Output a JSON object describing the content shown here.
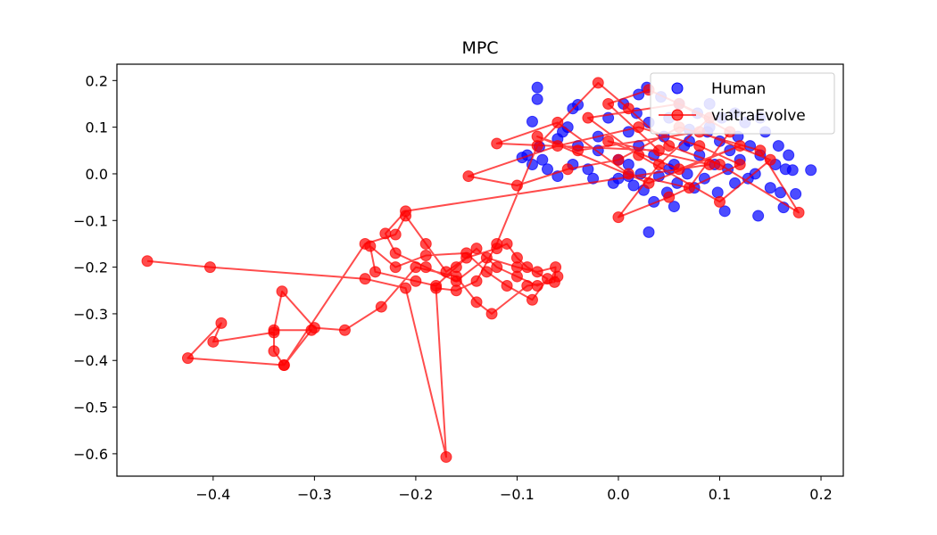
{
  "chart_data": {
    "type": "scatter",
    "title": "MPC",
    "xlabel": "",
    "ylabel": "",
    "xlim": [
      -0.495,
      0.222
    ],
    "ylim": [
      -0.648,
      0.235
    ],
    "x_ticks": [
      -0.4,
      -0.3,
      -0.2,
      -0.1,
      0.0,
      0.1,
      0.2
    ],
    "y_ticks": [
      0.2,
      0.1,
      0.0,
      -0.1,
      -0.2,
      -0.3,
      -0.4,
      -0.5,
      -0.6
    ],
    "x_tick_labels": [
      "−0.4",
      "−0.3",
      "−0.2",
      "−0.1",
      "0.0",
      "0.1",
      "0.2"
    ],
    "y_tick_labels": [
      "0.2",
      "0.1",
      "0.0",
      "−0.1",
      "−0.2",
      "−0.3",
      "−0.4",
      "−0.5",
      "−0.6"
    ],
    "grid": false,
    "legend_position": "top-right",
    "series": [
      {
        "name": "Human",
        "style": "scatter",
        "color": "#0000ff",
        "points": [
          [
            -0.08,
            0.185
          ],
          [
            -0.08,
            0.16
          ],
          [
            -0.045,
            0.14
          ],
          [
            -0.04,
            0.148
          ],
          [
            -0.085,
            0.112
          ],
          [
            -0.09,
            0.04
          ],
          [
            -0.095,
            0.035
          ],
          [
            -0.085,
            0.02
          ],
          [
            -0.078,
            0.058
          ],
          [
            -0.075,
            0.03
          ],
          [
            -0.06,
            0.075
          ],
          [
            -0.055,
            0.09
          ],
          [
            -0.05,
            0.1
          ],
          [
            -0.045,
            0.02
          ],
          [
            -0.04,
            0.06
          ],
          [
            -0.03,
            0.01
          ],
          [
            -0.025,
            -0.01
          ],
          [
            -0.02,
            0.05
          ],
          [
            -0.01,
            0.12
          ],
          [
            -0.005,
            -0.02
          ],
          [
            0.0,
            0.03
          ],
          [
            0.005,
            0.15
          ],
          [
            0.01,
            0.09
          ],
          [
            0.01,
            -0.005
          ],
          [
            0.015,
            -0.025
          ],
          [
            0.018,
            0.13
          ],
          [
            0.02,
            0.06
          ],
          [
            0.022,
            0.0
          ],
          [
            0.025,
            -0.035
          ],
          [
            0.028,
            0.185
          ],
          [
            0.03,
            0.11
          ],
          [
            0.03,
            -0.125
          ],
          [
            0.035,
            0.04
          ],
          [
            0.04,
            -0.005
          ],
          [
            0.042,
            0.165
          ],
          [
            0.045,
            0.08
          ],
          [
            0.048,
            -0.04
          ],
          [
            0.05,
            0.12
          ],
          [
            0.055,
            0.02
          ],
          [
            0.058,
            -0.02
          ],
          [
            0.06,
            0.15
          ],
          [
            0.065,
            0.06
          ],
          [
            0.068,
            0.0
          ],
          [
            0.07,
            0.095
          ],
          [
            0.075,
            -0.03
          ],
          [
            0.078,
            0.13
          ],
          [
            0.08,
            0.04
          ],
          [
            0.085,
            -0.01
          ],
          [
            0.088,
            0.09
          ],
          [
            0.09,
            0.15
          ],
          [
            0.095,
            0.02
          ],
          [
            0.098,
            -0.04
          ],
          [
            0.1,
            0.07
          ],
          [
            0.102,
            0.12
          ],
          [
            0.105,
            -0.08
          ],
          [
            0.108,
            0.01
          ],
          [
            0.11,
            0.05
          ],
          [
            0.115,
            -0.02
          ],
          [
            0.118,
            0.08
          ],
          [
            0.12,
            0.03
          ],
          [
            0.125,
            0.11
          ],
          [
            0.128,
            -0.01
          ],
          [
            0.13,
            0.06
          ],
          [
            0.135,
            0.0
          ],
          [
            0.138,
            -0.09
          ],
          [
            0.14,
            0.04
          ],
          [
            0.145,
            0.09
          ],
          [
            0.15,
            -0.03
          ],
          [
            0.155,
            0.02
          ],
          [
            0.158,
            0.06
          ],
          [
            0.16,
            -0.04
          ],
          [
            0.163,
            -0.072
          ],
          [
            0.165,
            0.01
          ],
          [
            0.168,
            0.04
          ],
          [
            0.172,
            0.008
          ],
          [
            0.175,
            -0.043
          ],
          [
            0.19,
            0.008
          ],
          [
            0.035,
            -0.06
          ],
          [
            0.055,
            -0.07
          ],
          [
            -0.06,
            -0.005
          ],
          [
            -0.07,
            0.01
          ],
          [
            0.0,
            -0.01
          ],
          [
            0.01,
            0.02
          ],
          [
            0.05,
            0.01
          ],
          [
            0.07,
            0.07
          ],
          [
            0.09,
            0.1
          ],
          [
            0.115,
            0.13
          ],
          [
            0.02,
            0.17
          ],
          [
            -0.02,
            0.08
          ],
          [
            0.14,
            0.12
          ]
        ]
      },
      {
        "name": "viatraEvolve",
        "style": "line-marker",
        "color": "#ff0000",
        "points": [
          [
            -0.465,
            -0.187
          ],
          [
            -0.403,
            -0.2
          ],
          [
            -0.25,
            -0.225
          ],
          [
            -0.21,
            -0.245
          ],
          [
            -0.17,
            -0.607
          ],
          [
            -0.18,
            -0.245
          ],
          [
            -0.16,
            -0.25
          ],
          [
            -0.14,
            -0.23
          ],
          [
            -0.12,
            -0.15
          ],
          [
            -0.08,
            0.06
          ],
          [
            -0.02,
            0.195
          ],
          [
            0.01,
            0.14
          ],
          [
            0.05,
            0.06
          ],
          [
            0.1,
            0.02
          ],
          [
            0.178,
            -0.083
          ],
          [
            0.14,
            0.05
          ],
          [
            0.06,
            0.1
          ],
          [
            0.0,
            0.03
          ],
          [
            -0.05,
            0.01
          ],
          [
            -0.1,
            -0.025
          ],
          [
            -0.148,
            -0.005
          ],
          [
            -0.06,
            0.06
          ],
          [
            0.02,
            0.1
          ],
          [
            0.08,
            0.06
          ],
          [
            0.12,
            0.02
          ],
          [
            0.05,
            -0.05
          ],
          [
            0.0,
            -0.093
          ],
          [
            0.04,
            0.02
          ],
          [
            0.09,
            0.12
          ],
          [
            0.03,
            0.18
          ],
          [
            -0.01,
            0.15
          ],
          [
            0.04,
            0.05
          ],
          [
            -0.12,
            0.065
          ],
          [
            -0.06,
            0.11
          ],
          [
            0.01,
            0.0
          ],
          [
            0.07,
            -0.03
          ],
          [
            0.11,
            0.09
          ],
          [
            0.06,
            0.15
          ],
          [
            -0.03,
            0.12
          ],
          [
            0.02,
            0.04
          ],
          [
            0.1,
            -0.06
          ],
          [
            0.15,
            0.03
          ],
          [
            0.08,
            0.09
          ],
          [
            -0.04,
            0.05
          ],
          [
            -0.08,
            0.08
          ],
          [
            0.03,
            -0.02
          ],
          [
            0.12,
            0.06
          ],
          [
            0.06,
            0.01
          ],
          [
            -0.01,
            0.07
          ],
          [
            0.09,
            0.02
          ],
          [
            -0.21,
            -0.08
          ],
          [
            -0.23,
            -0.128
          ],
          [
            -0.22,
            -0.17
          ],
          [
            -0.19,
            -0.2
          ],
          [
            -0.16,
            -0.23
          ],
          [
            -0.13,
            -0.18
          ],
          [
            -0.1,
            -0.2
          ],
          [
            -0.08,
            -0.21
          ],
          [
            -0.062,
            -0.2
          ],
          [
            -0.063,
            -0.232
          ],
          [
            -0.09,
            -0.24
          ],
          [
            -0.125,
            -0.3
          ],
          [
            -0.14,
            -0.275
          ],
          [
            -0.16,
            -0.22
          ],
          [
            -0.2,
            -0.2
          ],
          [
            -0.234,
            -0.285
          ],
          [
            -0.27,
            -0.335
          ],
          [
            -0.3,
            -0.33
          ],
          [
            -0.332,
            -0.252
          ],
          [
            -0.34,
            -0.335
          ],
          [
            -0.303,
            -0.335
          ],
          [
            -0.33,
            -0.41
          ],
          [
            -0.34,
            -0.38
          ],
          [
            -0.34,
            -0.34
          ],
          [
            -0.4,
            -0.36
          ],
          [
            -0.392,
            -0.32
          ],
          [
            -0.425,
            -0.395
          ],
          [
            -0.33,
            -0.41
          ],
          [
            -0.25,
            -0.15
          ],
          [
            -0.22,
            -0.13
          ],
          [
            -0.21,
            -0.09
          ],
          [
            -0.19,
            -0.15
          ],
          [
            -0.17,
            -0.21
          ],
          [
            -0.15,
            -0.18
          ],
          [
            -0.12,
            -0.16
          ],
          [
            -0.11,
            -0.15
          ],
          [
            -0.1,
            -0.18
          ],
          [
            -0.09,
            -0.2
          ],
          [
            -0.07,
            -0.225
          ],
          [
            -0.085,
            -0.27
          ],
          [
            -0.11,
            -0.24
          ],
          [
            -0.13,
            -0.21
          ],
          [
            -0.15,
            -0.17
          ],
          [
            -0.19,
            -0.175
          ],
          [
            -0.22,
            -0.2
          ],
          [
            -0.245,
            -0.155
          ],
          [
            -0.24,
            -0.21
          ],
          [
            -0.2,
            -0.23
          ],
          [
            -0.18,
            -0.24
          ],
          [
            -0.16,
            -0.2
          ],
          [
            -0.14,
            -0.16
          ],
          [
            -0.12,
            -0.2
          ],
          [
            -0.1,
            -0.22
          ],
          [
            -0.08,
            -0.24
          ],
          [
            -0.06,
            -0.22
          ]
        ]
      }
    ]
  }
}
